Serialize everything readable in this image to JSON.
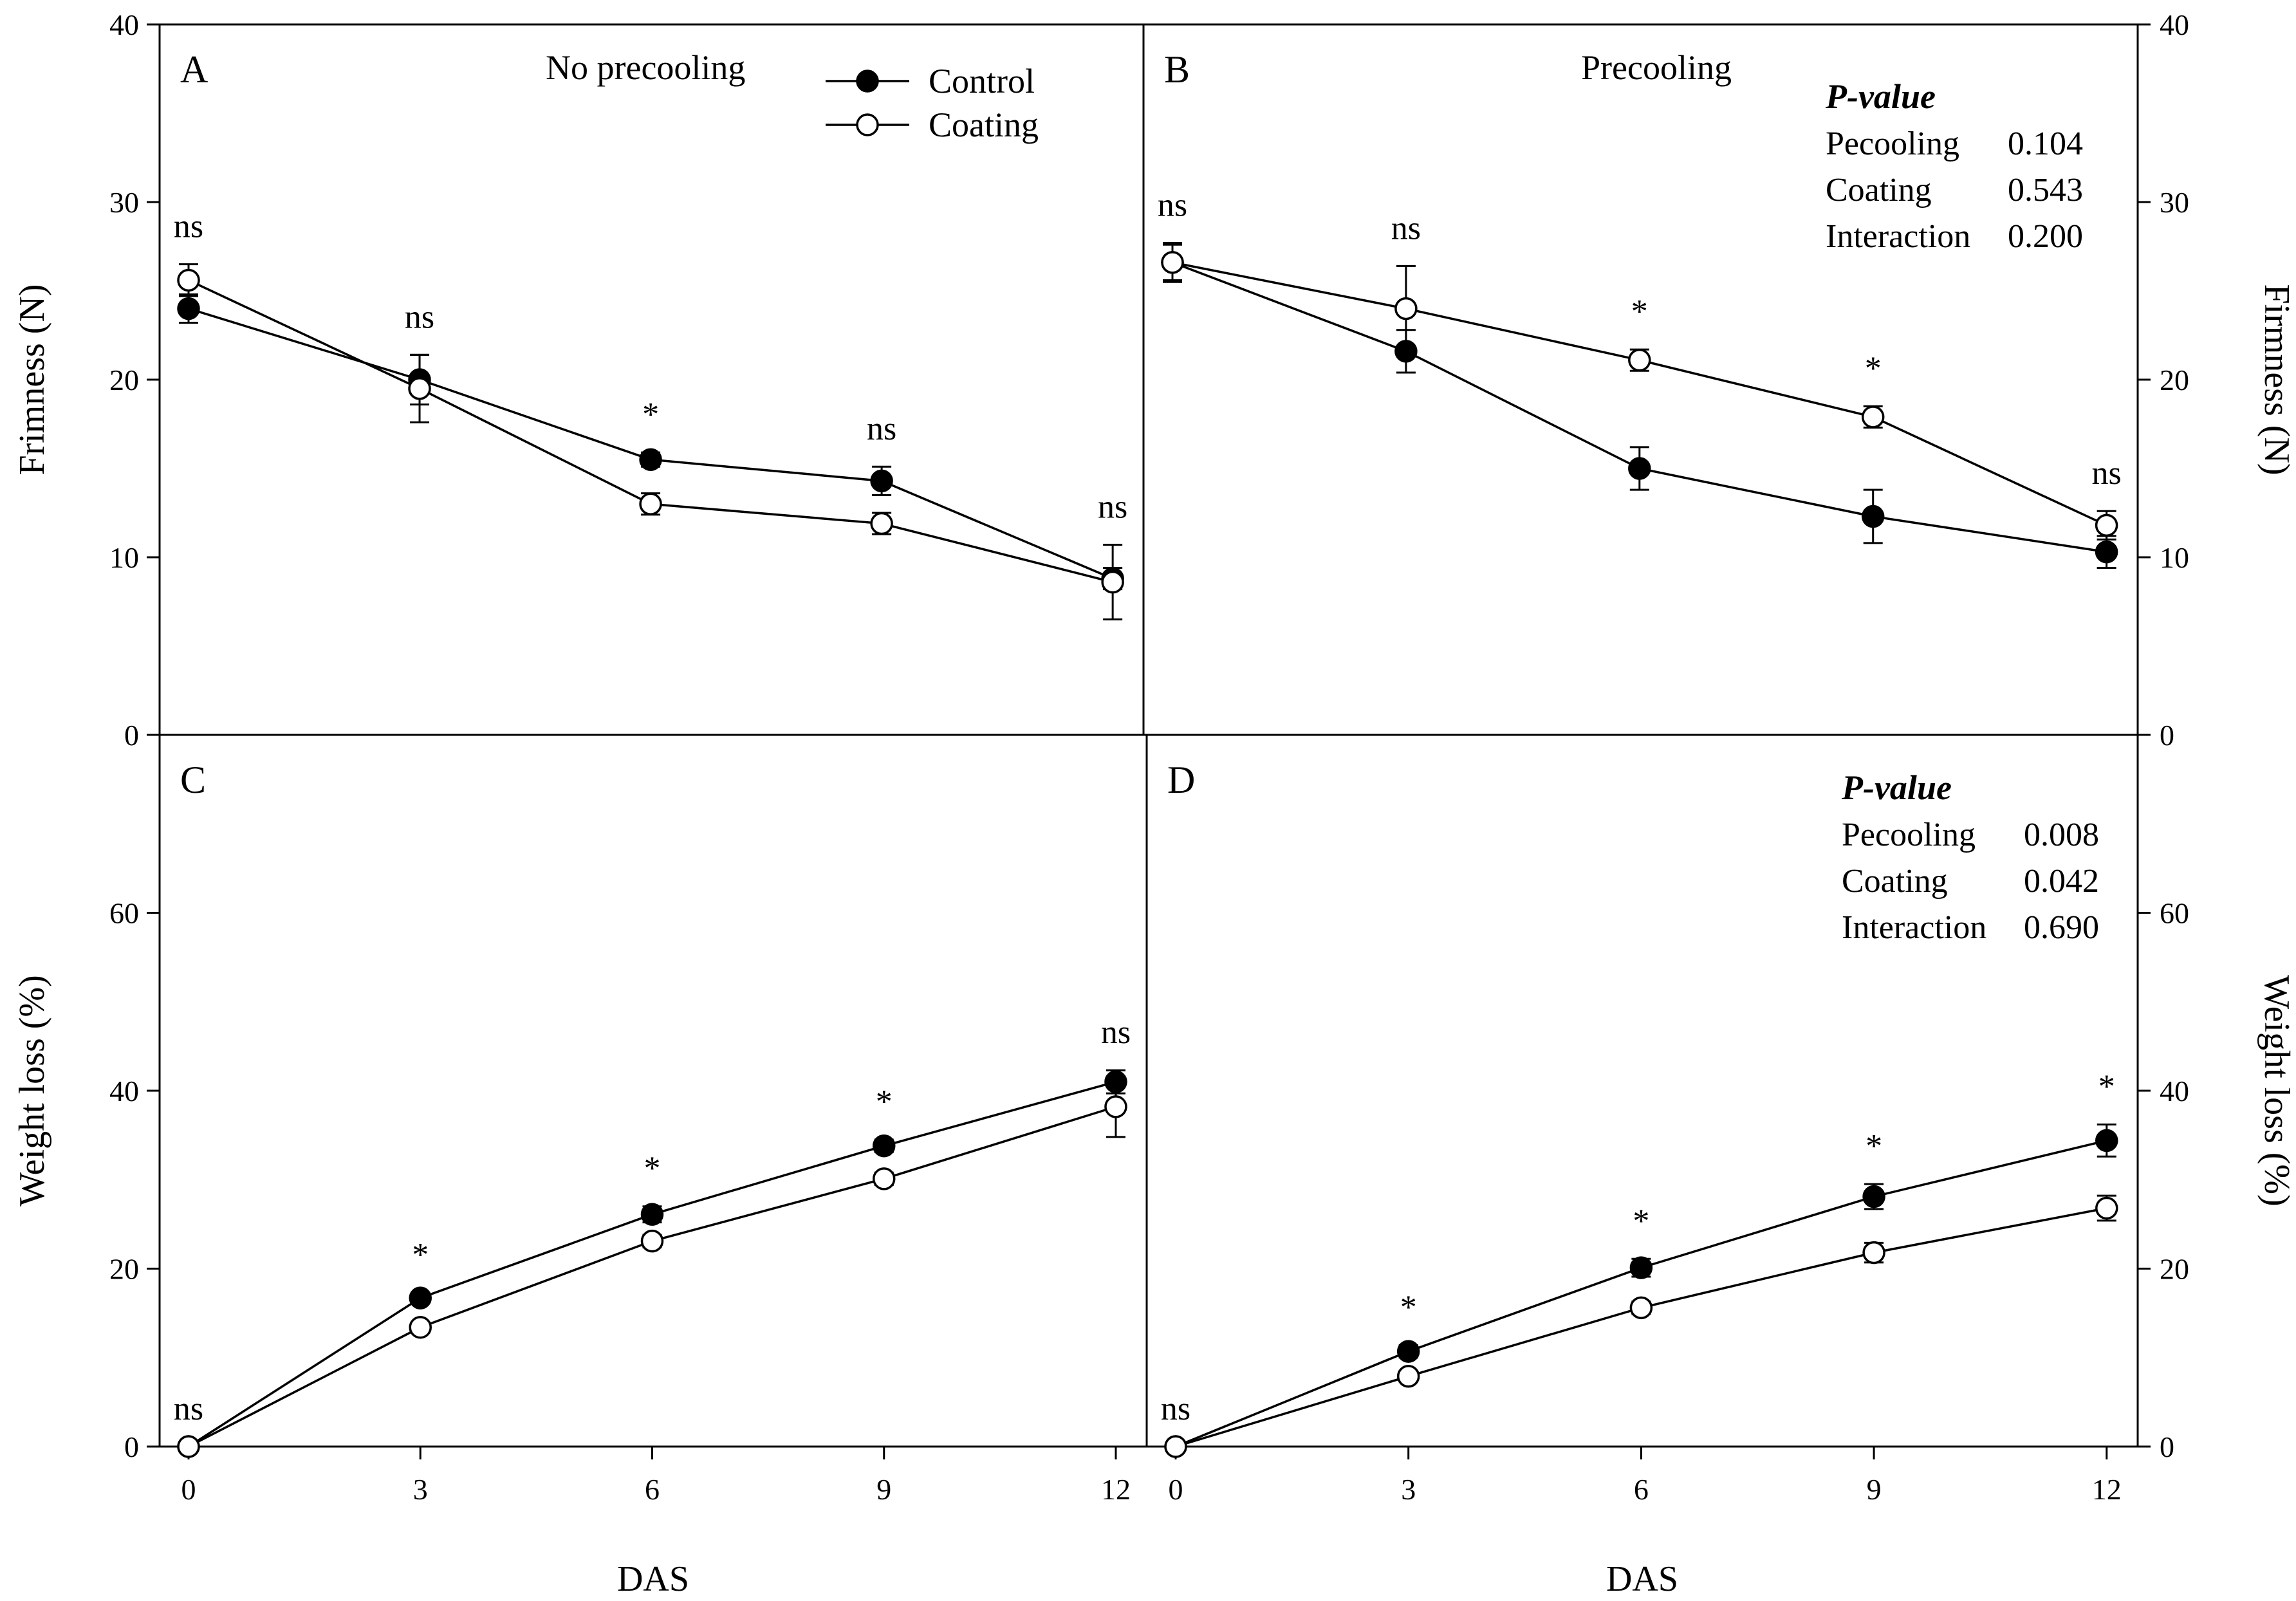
{
  "chart_data": [
    {
      "panel": "A",
      "type": "line",
      "panel_letter": "A",
      "annotation": "No precooling",
      "ylabel": "Frimness (N)",
      "xlabel": "",
      "xlim": [
        0,
        12.4
      ],
      "ylim": [
        0,
        40
      ],
      "x_ticks": [
        0,
        3,
        6,
        9,
        12
      ],
      "y_ticks": [
        0,
        10,
        20,
        30,
        40
      ],
      "x": [
        0,
        3,
        6,
        9,
        12
      ],
      "series": [
        {
          "name": "Control",
          "marker": "filled",
          "values": [
            24.0,
            20.0,
            15.5,
            14.3,
            8.8
          ],
          "errors": [
            0.8,
            1.4,
            0.4,
            0.8,
            0.6
          ]
        },
        {
          "name": "Coating",
          "marker": "open",
          "values": [
            25.6,
            19.5,
            13.0,
            11.9,
            8.6
          ],
          "errors": [
            0.9,
            1.9,
            0.6,
            0.6,
            2.1
          ]
        }
      ],
      "significance": [
        "ns",
        "ns",
        "*",
        "ns",
        "ns"
      ],
      "legend_position": "top-center"
    },
    {
      "panel": "B",
      "type": "line",
      "panel_letter": "B",
      "annotation": "Precooling",
      "ylabel": "Firmness (N)",
      "xlabel": "",
      "xlim": [
        0,
        12.4
      ],
      "ylim": [
        0,
        40
      ],
      "x_ticks": [
        0,
        3,
        6,
        9,
        12
      ],
      "y_ticks": [
        0,
        10,
        20,
        30,
        40
      ],
      "x": [
        0,
        3,
        6,
        9,
        12
      ],
      "series": [
        {
          "name": "Control",
          "marker": "filled",
          "values": [
            26.6,
            21.6,
            15.0,
            12.3,
            10.3
          ],
          "errors": [
            1.0,
            1.2,
            1.2,
            1.5,
            0.9
          ]
        },
        {
          "name": "Coating",
          "marker": "open",
          "values": [
            26.6,
            24.0,
            21.1,
            17.9,
            11.8
          ],
          "errors": [
            1.1,
            2.4,
            0.6,
            0.6,
            0.8
          ]
        }
      ],
      "significance": [
        "ns",
        "ns",
        "*",
        "*",
        "ns"
      ],
      "p_value": {
        "title": "P-value",
        "rows": [
          {
            "label": "Pecooling",
            "value": "0.104"
          },
          {
            "label": "Coating",
            "value": "0.543"
          },
          {
            "label": "Interaction",
            "value": "0.200"
          }
        ]
      }
    },
    {
      "panel": "C",
      "type": "line",
      "panel_letter": "C",
      "annotation": "",
      "ylabel": "Weight loss (%)",
      "xlabel": "DAS",
      "xlim": [
        0,
        12.4
      ],
      "ylim": [
        0,
        80
      ],
      "x_ticks": [
        0,
        3,
        6,
        9,
        12
      ],
      "y_ticks": [
        0,
        20,
        40,
        60
      ],
      "x": [
        0,
        3,
        6,
        9,
        12
      ],
      "series": [
        {
          "name": "Control",
          "marker": "filled",
          "values": [
            0,
            16.7,
            26.1,
            33.8,
            41.0
          ],
          "errors": [
            0,
            0.6,
            0.9,
            0.7,
            1.3
          ]
        },
        {
          "name": "Coating",
          "marker": "open",
          "values": [
            0,
            13.4,
            23.1,
            30.1,
            38.2
          ],
          "errors": [
            0,
            0.6,
            0.7,
            0.7,
            3.4
          ]
        }
      ],
      "significance": [
        "ns",
        "*",
        "*",
        "*",
        "ns"
      ]
    },
    {
      "panel": "D",
      "type": "line",
      "panel_letter": "D",
      "annotation": "",
      "ylabel": "Weight loss (%)",
      "xlabel": "DAS",
      "xlim": [
        0,
        12.4
      ],
      "ylim": [
        0,
        80
      ],
      "x_ticks": [
        0,
        3,
        6,
        9,
        12
      ],
      "y_ticks": [
        0,
        20,
        40,
        60
      ],
      "x": [
        0,
        3,
        6,
        9,
        12
      ],
      "series": [
        {
          "name": "Control",
          "marker": "filled",
          "values": [
            0,
            10.7,
            20.1,
            28.1,
            34.4
          ],
          "errors": [
            0,
            0.7,
            1.0,
            1.4,
            1.8
          ]
        },
        {
          "name": "Coating",
          "marker": "open",
          "values": [
            0,
            7.9,
            15.6,
            21.8,
            26.8
          ],
          "errors": [
            0,
            0.6,
            0.7,
            1.1,
            1.4
          ]
        }
      ],
      "significance": [
        "ns",
        "*",
        "*",
        "*",
        "*"
      ],
      "p_value": {
        "title": "P-value",
        "rows": [
          {
            "label": "Pecooling",
            "value": "0.008"
          },
          {
            "label": "Coating",
            "value": "0.042"
          },
          {
            "label": "Interaction",
            "value": "0.690"
          }
        ]
      }
    }
  ]
}
